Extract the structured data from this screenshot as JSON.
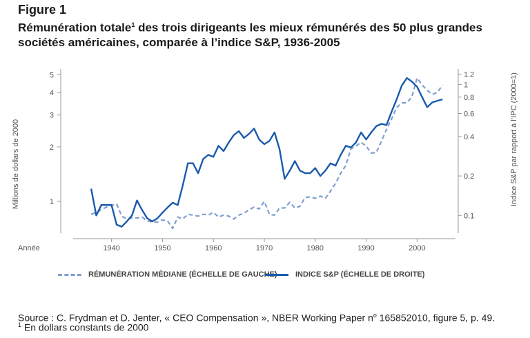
{
  "figure_label": "Figure 1",
  "title_part1": "Rémunération totale",
  "title_sup": "1",
  "title_part2": " des trois dirigeants les mieux rémunérés des 50 plus grandes sociétés américaines, comparée à l’indice S&P, 1936-2005",
  "source_part1": "Source : C. Frydman et D. Jenter, « CEO Compensation », NBER Working Paper n",
  "source_sup": "o",
  "source_part2": " 165852010, figure 5, p. 49.",
  "note_sup": "1",
  "note_text": " En dollars constants de 2000",
  "colors": {
    "median": "#7f9fcf",
    "sp": "#1a5aab",
    "axis": "#999999",
    "text": "#555555"
  },
  "chart_data": {
    "type": "line",
    "xlabel": "Année",
    "ylabel_left": "Millions de dollars de 2000",
    "ylabel_right": "Indice S&P par rapport à l’IPC (2000=1)",
    "x_ticks": [
      1940,
      1950,
      1960,
      1970,
      1980,
      1990,
      2000
    ],
    "xlim": [
      1933,
      2007
    ],
    "left_axis": {
      "scale": "log",
      "lim": [
        0.68,
        5.2
      ],
      "ticks": [
        1,
        2,
        3,
        4,
        5
      ],
      "tick_labels": [
        "1",
        "2",
        "3",
        "4",
        "5"
      ]
    },
    "right_axis": {
      "scale": "log",
      "lim": [
        0.075,
        1.25
      ],
      "ticks": [
        0.1,
        0.2,
        0.4,
        0.6,
        0.8,
        1,
        1.2
      ],
      "tick_labels": [
        "0.1",
        "0.2",
        "0.4",
        "0.6",
        "0.8",
        "1",
        "1.2"
      ]
    },
    "series": [
      {
        "name": "RÉMUNÉRATION MÉDIANE (ÉCHELLE DE GAUCHE)",
        "axis": "left",
        "style": "dashed",
        "x": [
          1936,
          1937,
          1938,
          1939,
          1940,
          1941,
          1942,
          1943,
          1944,
          1945,
          1946,
          1947,
          1948,
          1949,
          1950,
          1951,
          1952,
          1953,
          1954,
          1955,
          1956,
          1957,
          1958,
          1959,
          1960,
          1961,
          1962,
          1963,
          1964,
          1965,
          1966,
          1967,
          1968,
          1969,
          1970,
          1971,
          1972,
          1973,
          1974,
          1975,
          1976,
          1977,
          1978,
          1979,
          1980,
          1981,
          1982,
          1983,
          1984,
          1985,
          1986,
          1987,
          1988,
          1989,
          1990,
          1991,
          1992,
          1993,
          1994,
          1995,
          1996,
          1997,
          1998,
          1999,
          2000,
          2001,
          2002,
          2003,
          2004,
          2005
        ],
        "y": [
          0.85,
          0.87,
          0.9,
          0.93,
          0.95,
          0.97,
          0.83,
          0.8,
          0.81,
          0.81,
          0.82,
          0.78,
          0.77,
          0.77,
          0.79,
          0.78,
          0.71,
          0.82,
          0.8,
          0.85,
          0.84,
          0.83,
          0.85,
          0.84,
          0.87,
          0.82,
          0.84,
          0.83,
          0.8,
          0.84,
          0.86,
          0.9,
          0.93,
          0.91,
          1.0,
          0.85,
          0.84,
          0.92,
          0.92,
          0.99,
          0.92,
          0.94,
          1.05,
          1.06,
          1.04,
          1.07,
          1.04,
          1.14,
          1.26,
          1.43,
          1.58,
          1.95,
          2.02,
          2.12,
          2.02,
          1.85,
          1.86,
          2.15,
          2.5,
          2.86,
          3.3,
          3.5,
          3.5,
          3.8,
          4.8,
          4.4,
          4.1,
          3.9,
          4.0,
          4.4
        ]
      },
      {
        "name": "INDICE S&P (ÉCHELLE DE DROITE)",
        "axis": "right",
        "style": "solid",
        "x": [
          1936,
          1937,
          1938,
          1939,
          1940,
          1941,
          1942,
          1943,
          1944,
          1945,
          1946,
          1947,
          1948,
          1949,
          1950,
          1951,
          1952,
          1953,
          1954,
          1955,
          1956,
          1957,
          1958,
          1959,
          1960,
          1961,
          1962,
          1963,
          1964,
          1965,
          1966,
          1967,
          1968,
          1969,
          1970,
          1971,
          1972,
          1973,
          1974,
          1975,
          1976,
          1977,
          1978,
          1979,
          1980,
          1981,
          1982,
          1983,
          1984,
          1985,
          1986,
          1987,
          1988,
          1989,
          1990,
          1991,
          1992,
          1993,
          1994,
          1995,
          1996,
          1997,
          1998,
          1999,
          2000,
          2001,
          2002,
          2003,
          2004,
          2005
        ],
        "y": [
          0.16,
          0.1,
          0.12,
          0.12,
          0.12,
          0.085,
          0.082,
          0.09,
          0.1,
          0.13,
          0.11,
          0.095,
          0.09,
          0.095,
          0.105,
          0.115,
          0.125,
          0.12,
          0.17,
          0.25,
          0.25,
          0.21,
          0.27,
          0.29,
          0.28,
          0.34,
          0.31,
          0.36,
          0.41,
          0.44,
          0.39,
          0.42,
          0.46,
          0.38,
          0.35,
          0.37,
          0.43,
          0.32,
          0.19,
          0.22,
          0.26,
          0.22,
          0.21,
          0.21,
          0.23,
          0.2,
          0.22,
          0.25,
          0.24,
          0.29,
          0.34,
          0.33,
          0.36,
          0.43,
          0.38,
          0.43,
          0.48,
          0.5,
          0.49,
          0.62,
          0.77,
          0.98,
          1.12,
          1.05,
          0.96,
          0.8,
          0.67,
          0.73,
          0.75,
          0.77
        ]
      }
    ],
    "legend": "bottom",
    "grid": false
  }
}
